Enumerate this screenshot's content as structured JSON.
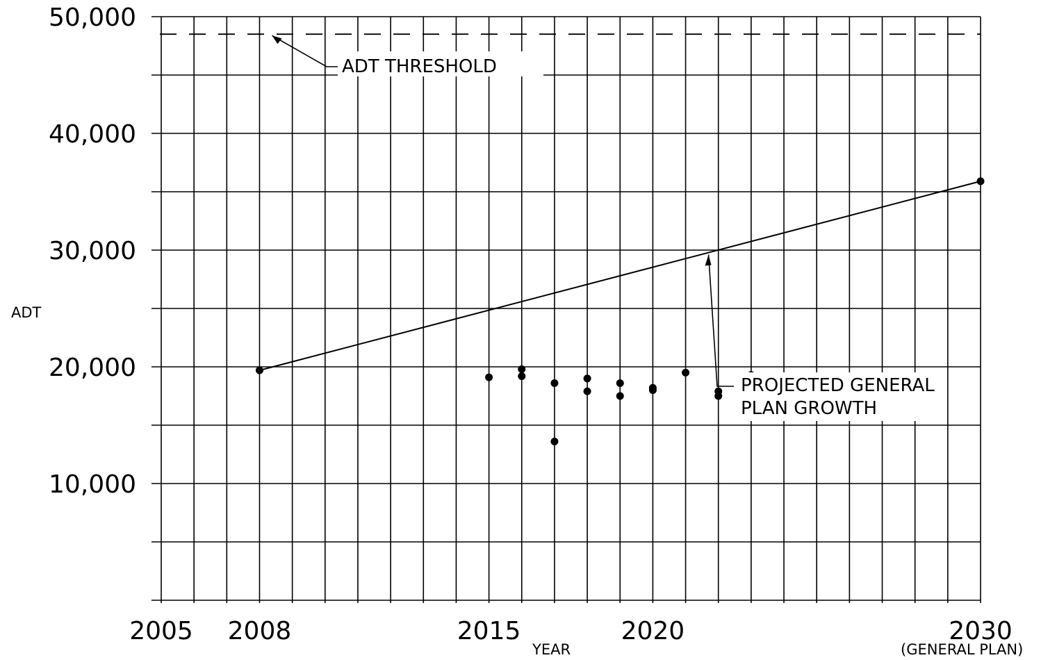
{
  "chart_data": {
    "type": "scatter",
    "title": "",
    "xlabel": "YEAR",
    "ylabel": "ADT",
    "xlim": [
      2005,
      2030
    ],
    "ylim": [
      0,
      50000
    ],
    "x_ticks": [
      {
        "value": 2005,
        "label": "2005"
      },
      {
        "value": 2008,
        "label": "2008"
      },
      {
        "value": 2015,
        "label": "2015"
      },
      {
        "value": 2020,
        "label": "2020"
      },
      {
        "value": 2030,
        "label": "2030"
      }
    ],
    "x_tick_sublabel": "(GENERAL PLAN)",
    "y_ticks": [
      {
        "value": 10000,
        "label": "10,000"
      },
      {
        "value": 20000,
        "label": "20,000"
      },
      {
        "value": 30000,
        "label": "30,000"
      },
      {
        "value": 40000,
        "label": "40,000"
      },
      {
        "value": 50000,
        "label": "50,000"
      }
    ],
    "x_grid_step": 1,
    "y_grid_step": 5000,
    "grid": true,
    "series": [
      {
        "type": "scatter",
        "points": [
          {
            "x": 2008,
            "y": 19700
          },
          {
            "x": 2015,
            "y": 19100
          },
          {
            "x": 2016,
            "y": 19800
          },
          {
            "x": 2016,
            "y": 19200
          },
          {
            "x": 2017,
            "y": 18600
          },
          {
            "x": 2017,
            "y": 13600
          },
          {
            "x": 2018,
            "y": 19000
          },
          {
            "x": 2018,
            "y": 17900
          },
          {
            "x": 2019,
            "y": 18600
          },
          {
            "x": 2019,
            "y": 17500
          },
          {
            "x": 2020,
            "y": 18200
          },
          {
            "x": 2020,
            "y": 18000
          },
          {
            "x": 2021,
            "y": 19500
          },
          {
            "x": 2022,
            "y": 17900
          },
          {
            "x": 2022,
            "y": 17500
          },
          {
            "x": 2023,
            "y": 19300
          },
          {
            "x": 2030,
            "y": 35900
          }
        ]
      },
      {
        "type": "line",
        "points": [
          {
            "x": 2008,
            "y": 19700
          },
          {
            "x": 2030,
            "y": 35900
          }
        ]
      }
    ],
    "threshold": {
      "y": 48500
    },
    "annotations": {
      "threshold_label": "ADT THRESHOLD",
      "growth_label_line1": "PROJECTED GENERAL",
      "growth_label_line2": "PLAN GROWTH"
    }
  }
}
